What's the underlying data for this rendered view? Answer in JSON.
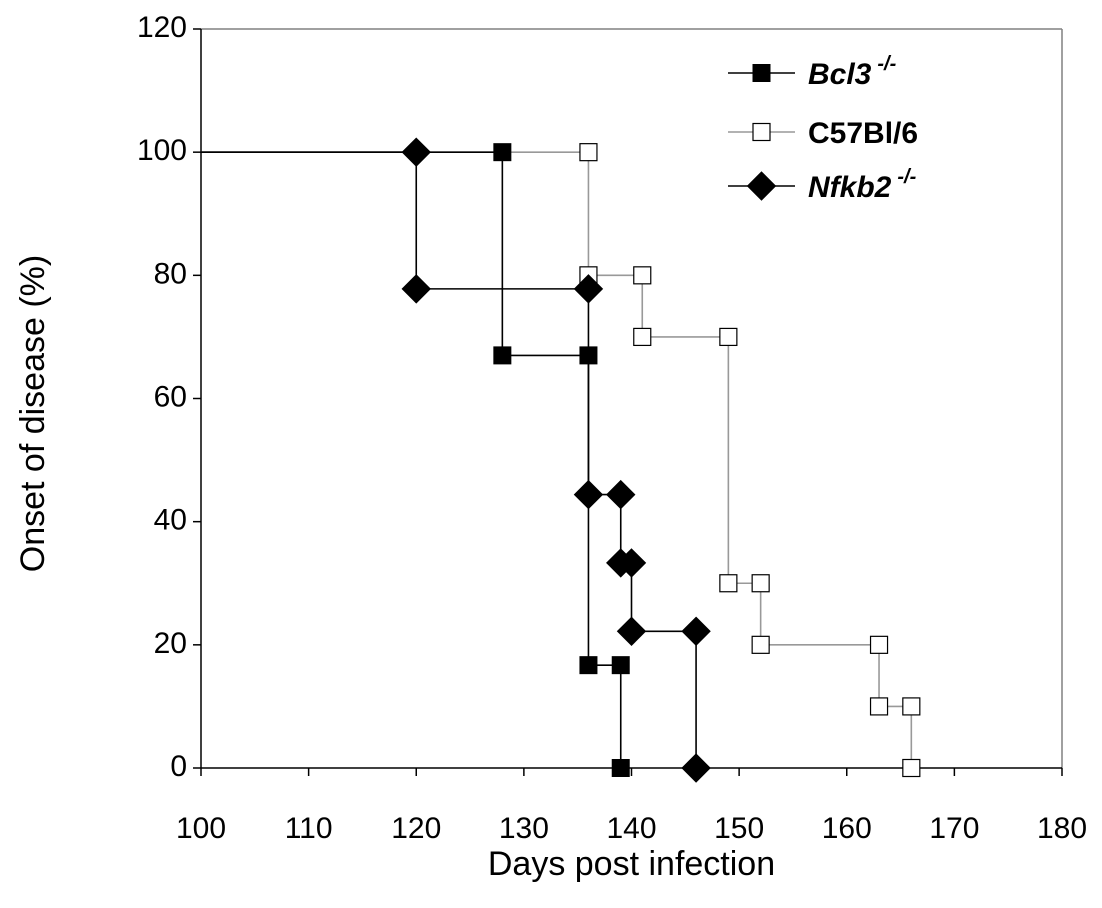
{
  "chart_data": {
    "type": "line",
    "xlabel": "Days post infection",
    "ylabel": "Onset of disease (%)",
    "xlim": [
      100,
      180
    ],
    "ylim": [
      0,
      120
    ],
    "x_ticks": [
      100,
      110,
      120,
      130,
      140,
      150,
      160,
      170,
      180
    ],
    "y_ticks": [
      0,
      20,
      40,
      60,
      80,
      100,
      120
    ],
    "grid": false,
    "legend_position": "top-right",
    "series": [
      {
        "name": "Bcl3",
        "name_superscript": "-/-",
        "name_italic": true,
        "color": "#000000",
        "marker": "filled-square",
        "step": true,
        "start_x": 100,
        "points": [
          {
            "x": 128,
            "y": 100
          },
          {
            "x": 128,
            "y": 67
          },
          {
            "x": 136,
            "y": 67
          },
          {
            "x": 136,
            "y": 16.7
          },
          {
            "x": 139,
            "y": 16.7
          },
          {
            "x": 139,
            "y": 0
          }
        ]
      },
      {
        "name": "C57Bl/6",
        "name_superscript": "",
        "name_italic": false,
        "color": "#999999",
        "marker": "open-square",
        "step": true,
        "start_x": 100,
        "points": [
          {
            "x": 136,
            "y": 100
          },
          {
            "x": 136,
            "y": 80
          },
          {
            "x": 141,
            "y": 80
          },
          {
            "x": 141,
            "y": 70
          },
          {
            "x": 149,
            "y": 70
          },
          {
            "x": 149,
            "y": 30
          },
          {
            "x": 152,
            "y": 30
          },
          {
            "x": 152,
            "y": 20
          },
          {
            "x": 163,
            "y": 20
          },
          {
            "x": 163,
            "y": 10
          },
          {
            "x": 166,
            "y": 10
          },
          {
            "x": 166,
            "y": 0
          }
        ]
      },
      {
        "name": "Nfkb2",
        "name_superscript": "-/-",
        "name_italic": true,
        "color": "#000000",
        "marker": "filled-diamond",
        "step": true,
        "start_x": 100,
        "points": [
          {
            "x": 120,
            "y": 100
          },
          {
            "x": 120,
            "y": 77.8
          },
          {
            "x": 136,
            "y": 77.8
          },
          {
            "x": 136,
            "y": 44.4
          },
          {
            "x": 139,
            "y": 44.4
          },
          {
            "x": 139,
            "y": 33.3
          },
          {
            "x": 140,
            "y": 33.3
          },
          {
            "x": 140,
            "y": 22.2
          },
          {
            "x": 146,
            "y": 22.2
          },
          {
            "x": 146,
            "y": 0
          }
        ]
      }
    ]
  }
}
